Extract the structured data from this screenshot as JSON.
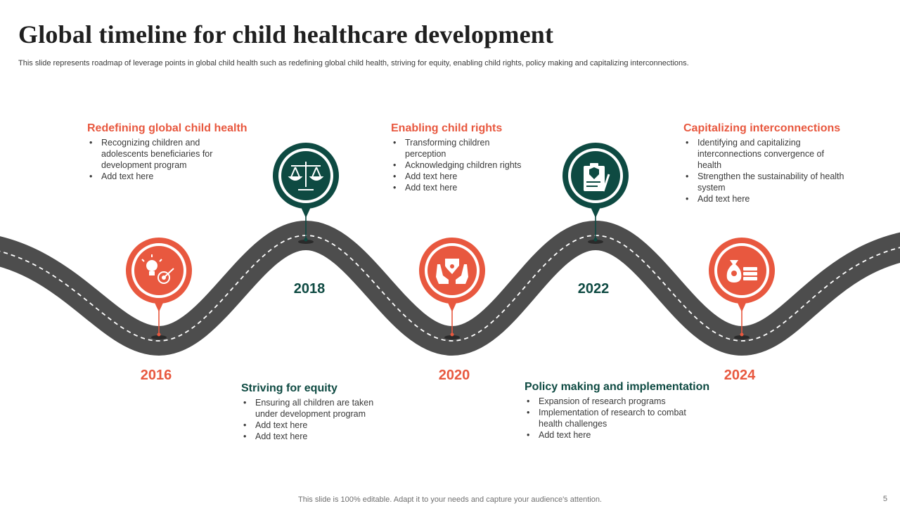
{
  "slide": {
    "title": "Global timeline for child healthcare development",
    "subtitle": "This slide represents roadmap of leverage points in global child health such as redefining global child health, striving for equity, enabling child rights, policy making and capitalizing interconnections.",
    "footer": "This slide is 100% editable. Adapt it to your needs and capture your audience's attention.",
    "page_number": "5"
  },
  "colors": {
    "orange": "#e8583f",
    "teal": "#0e4a42",
    "road": "#4d4d4d"
  },
  "milestones": [
    {
      "year": "2016",
      "heading": "Redefining global child health",
      "bullets": [
        "Recognizing children and adolescents beneficiaries for development program",
        "Add text here"
      ],
      "icon": "lightbulb-target-icon"
    },
    {
      "year": "2018",
      "heading": "Striving for equity",
      "bullets": [
        "Ensuring all children are taken under development program",
        "Add text here",
        "Add text here"
      ],
      "icon": "balance-scale-icon"
    },
    {
      "year": "2020",
      "heading": "Enabling child rights",
      "bullets": [
        "Transforming children perception",
        "Acknowledging children rights",
        "Add text here",
        "Add text here"
      ],
      "icon": "caring-hands-icon"
    },
    {
      "year": "2022",
      "heading": "Policy making and implementation",
      "bullets": [
        "Expansion of research programs",
        "Implementation of research to combat health challenges",
        "Add text here"
      ],
      "icon": "clipboard-shield-icon"
    },
    {
      "year": "2024",
      "heading": "Capitalizing interconnections",
      "bullets": [
        "Identifying and capitalizing interconnections convergence of health",
        "Strengthen the sustainability of health system",
        "Add text here"
      ],
      "icon": "money-bag-icon"
    }
  ]
}
